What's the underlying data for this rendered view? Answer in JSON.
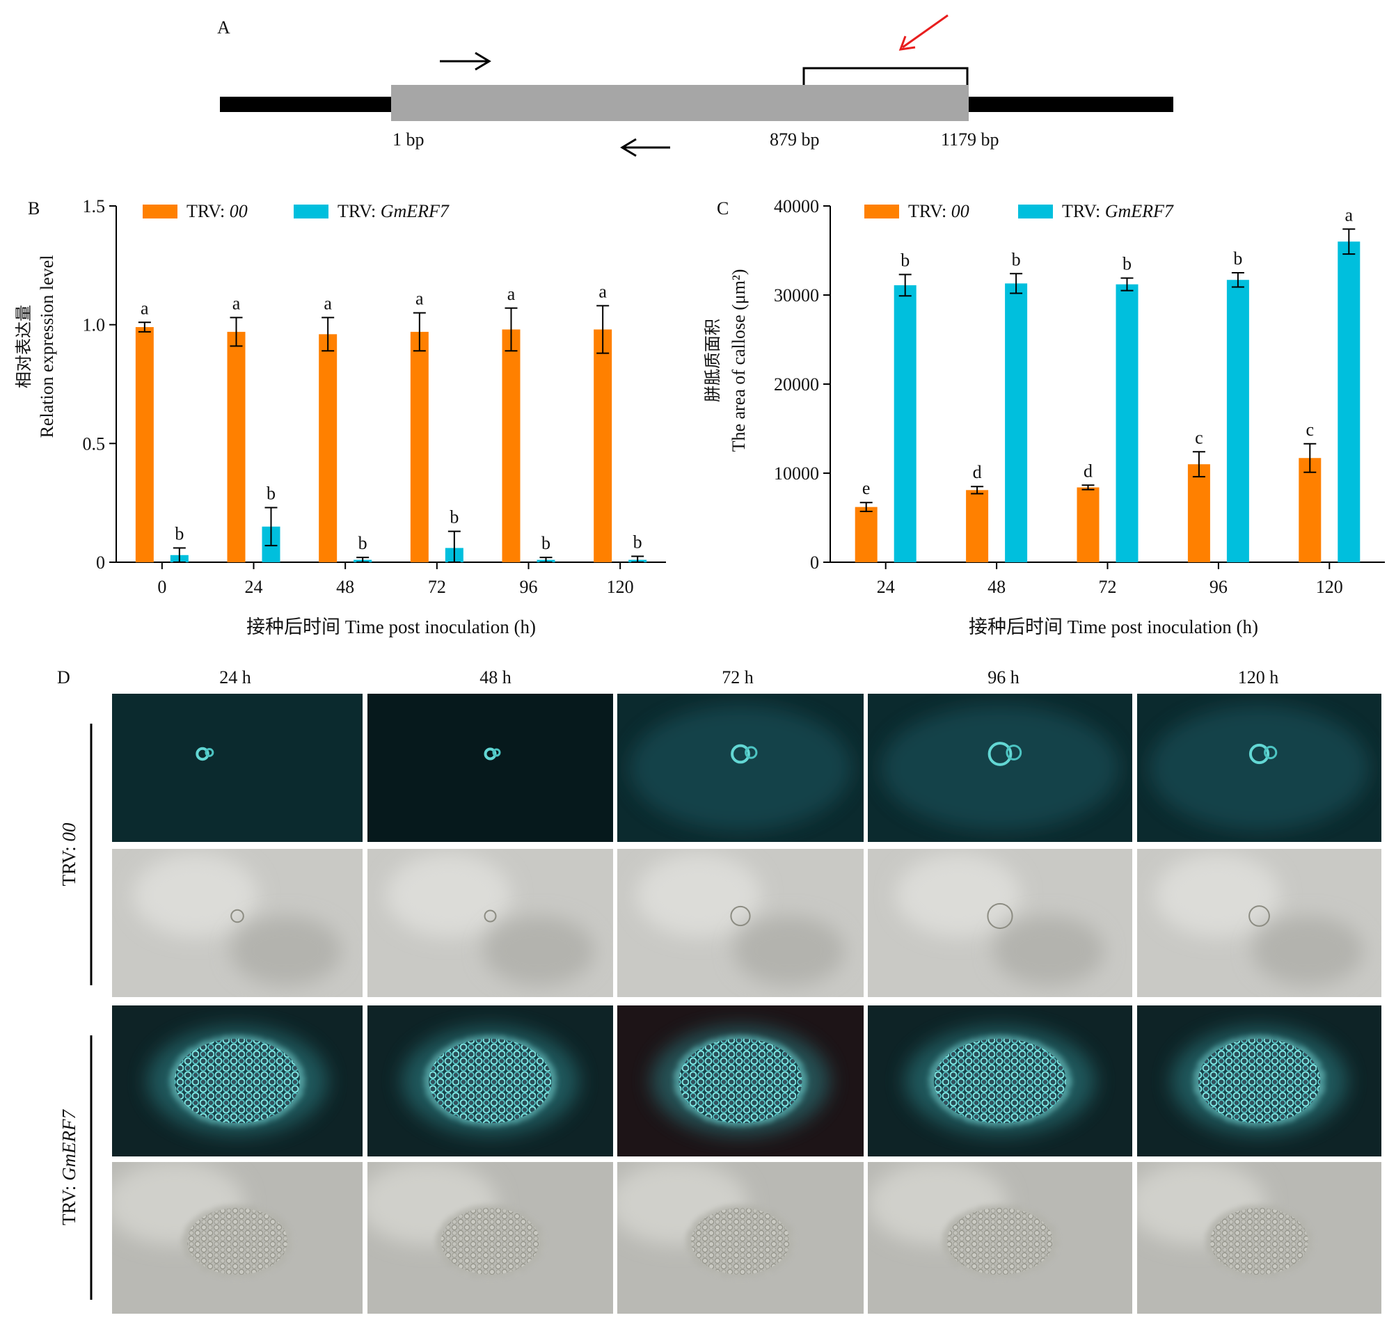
{
  "colors": {
    "trv00": "#FF8000",
    "trvGmERF7": "#00BFDD",
    "gene_body": "#A6A6A6",
    "flank": "#000000",
    "highlight_arrow": "#E81E1E"
  },
  "panel_a": {
    "label": "A",
    "pos_start": "1 bp",
    "pos_mid": "879 bp",
    "pos_end": "1179 bp"
  },
  "legend": {
    "prefix": "TRV: ",
    "series1_italic": "00",
    "series2_italic": "GmERF7"
  },
  "panel_d": {
    "label": "D",
    "columns": [
      "24 h",
      "48 h",
      "72 h",
      "96 h",
      "120 h"
    ],
    "row1_prefix": "TRV: ",
    "row1_italic": "00",
    "row2_prefix": "TRV: ",
    "row2_italic": "GmERF7"
  },
  "chart_data": [
    {
      "panel": "B",
      "type": "bar",
      "ylabel_cn": "相对表达量",
      "ylabel_en": "Relation expression level",
      "xlabel": "接种后时间 Time post inoculation (h)",
      "categories": [
        "0",
        "24",
        "48",
        "72",
        "96",
        "120"
      ],
      "ylim": [
        0,
        1.5
      ],
      "yticks": [
        "0",
        "0.5",
        "1.0",
        "1.5"
      ],
      "series": [
        {
          "name": "TRV: 00",
          "values": [
            0.99,
            0.97,
            0.96,
            0.97,
            0.98,
            0.98
          ],
          "errors": [
            0.02,
            0.06,
            0.07,
            0.08,
            0.09,
            0.1
          ],
          "letters": [
            "a",
            "a",
            "a",
            "a",
            "a",
            "a"
          ]
        },
        {
          "name": "TRV: GmERF7",
          "values": [
            0.03,
            0.15,
            0.01,
            0.06,
            0.01,
            0.01
          ],
          "errors": [
            0.03,
            0.08,
            0.01,
            0.07,
            0.01,
            0.015
          ],
          "letters": [
            "b",
            "b",
            "b",
            "b",
            "b",
            "b"
          ]
        }
      ]
    },
    {
      "panel": "C",
      "type": "bar",
      "ylabel_cn": "胼胝质面积",
      "ylabel_en": "The area of callose (μm²)",
      "xlabel": "接种后时间 Time post inoculation (h)",
      "categories": [
        "24",
        "48",
        "72",
        "96",
        "120"
      ],
      "ylim": [
        0,
        40000
      ],
      "yticks": [
        "0",
        "10000",
        "20000",
        "30000",
        "40000"
      ],
      "series": [
        {
          "name": "TRV: 00",
          "values": [
            6200,
            8100,
            8400,
            11000,
            11700
          ],
          "errors": [
            500,
            400,
            250,
            1400,
            1600
          ],
          "letters": [
            "e",
            "d",
            "d",
            "c",
            "c"
          ]
        },
        {
          "name": "TRV: GmERF7",
          "values": [
            31100,
            31300,
            31200,
            31700,
            36000
          ],
          "errors": [
            1200,
            1100,
            700,
            800,
            1400
          ],
          "letters": [
            "b",
            "b",
            "b",
            "b",
            "a"
          ]
        }
      ]
    }
  ]
}
